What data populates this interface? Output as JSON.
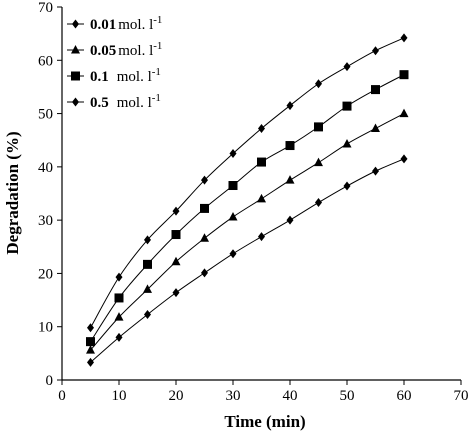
{
  "chart_data": {
    "type": "line",
    "xlabel": "Time (min)",
    "ylabel": "Degradation (%)",
    "xlim": [
      0,
      70
    ],
    "ylim": [
      0,
      70
    ],
    "xticks": [
      "0",
      "10",
      "20",
      "30",
      "40",
      "50",
      "60",
      "70"
    ],
    "yticks": [
      "0",
      "10",
      "20",
      "30",
      "40",
      "50",
      "60",
      "70"
    ],
    "grid": false,
    "legend_position": "top-left",
    "x": [
      5,
      10,
      15,
      20,
      25,
      30,
      35,
      40,
      45,
      50,
      55,
      60
    ],
    "series": [
      {
        "name_value": "0.01",
        "name_unit": "mol. l",
        "name_exp": "-1",
        "marker": "diamond",
        "values": [
          9.8,
          19.3,
          26.3,
          31.7,
          37.5,
          42.5,
          47.2,
          51.5,
          55.6,
          58.8,
          61.8,
          64.2
        ]
      },
      {
        "name_value": "0.05",
        "name_unit": "mol. l",
        "name_exp": "-1",
        "marker": "triangle",
        "values": [
          5.6,
          11.8,
          17.0,
          22.2,
          26.6,
          30.6,
          34.0,
          37.5,
          40.8,
          44.3,
          47.2,
          50.0
        ]
      },
      {
        "name_value": "0.1",
        "name_unit": "mol. l",
        "name_exp": "-1",
        "marker": "square",
        "values": [
          7.2,
          15.4,
          21.7,
          27.3,
          32.2,
          36.5,
          40.9,
          44.0,
          47.5,
          51.4,
          54.5,
          57.3
        ]
      },
      {
        "name_value": "0.5",
        "name_unit": "mol. l",
        "name_exp": "-1",
        "marker": "diamond",
        "values": [
          3.3,
          8.0,
          12.3,
          16.4,
          20.1,
          23.7,
          26.9,
          30.0,
          33.3,
          36.4,
          39.2,
          41.5
        ]
      }
    ]
  }
}
